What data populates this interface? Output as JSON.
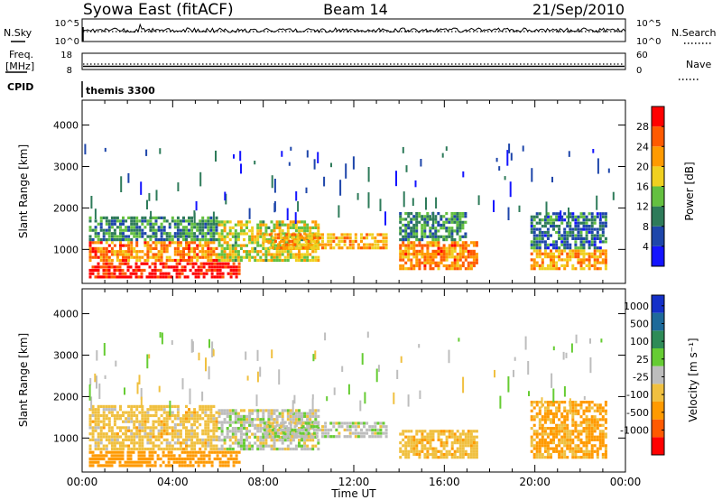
{
  "header": {
    "station": "Syowa East (fitACF)",
    "beam": "Beam 14",
    "date": "21/Sep/2010"
  },
  "nsky_panel": {
    "left_label": "N.Sky",
    "right_label": "N.Search",
    "left_ticks": [
      "10^5",
      "10^0"
    ],
    "right_ticks": [
      "10^5",
      "10^0"
    ]
  },
  "freq_panel": {
    "left_label": "Freq.",
    "left_unit": "[MHz]",
    "right_label": "Nave",
    "left_ticks": [
      "18",
      "8"
    ],
    "right_ticks": [
      "60",
      "0"
    ]
  },
  "cpid_panel": {
    "label": "CPID",
    "value": "themis 3300"
  },
  "x_axis": {
    "label": "Time UT",
    "ticks": [
      "00:00",
      "04:00",
      "08:00",
      "12:00",
      "16:00",
      "20:00",
      "00:00"
    ]
  },
  "power_panel": {
    "ylabel": "Slant Range [km]",
    "yticks": [
      "1000",
      "2000",
      "3000",
      "4000"
    ],
    "colorbar_label": "Power [dB]",
    "colorbar_ticks": [
      "4",
      "8",
      "12",
      "16",
      "20",
      "24",
      "28"
    ],
    "colors": [
      "#1414ff",
      "#1e46aa",
      "#2e7b5a",
      "#64c040",
      "#f0d020",
      "#ff9a00",
      "#ff5a00",
      "#ff0000"
    ]
  },
  "velocity_panel": {
    "ylabel": "Slant Range [km]",
    "yticks": [
      "1000",
      "2000",
      "3000",
      "4000"
    ],
    "colorbar_label": "Velocity [m s⁻¹]",
    "colorbar_ticks": [
      "1000",
      "500",
      "100",
      "25",
      "-25",
      "-100",
      "-500",
      "-1000"
    ],
    "colors": [
      "#1430c8",
      "#1e6a9a",
      "#2e8b57",
      "#66cc33",
      "#bdbdbd",
      "#f0c040",
      "#ff9a00",
      "#ff5a00",
      "#ff0000"
    ]
  },
  "chart_data": [
    {
      "type": "heatmap",
      "name": "Power",
      "x_range_hours_ut": [
        0,
        24
      ],
      "y_range_km": [
        180,
        4600
      ],
      "colorbar_range_db": [
        0,
        30
      ],
      "echo_regions": [
        {
          "t": [
            0.3,
            7.0
          ],
          "r": [
            300,
            700
          ],
          "power_db": 28
        },
        {
          "t": [
            0.3,
            6.0
          ],
          "r": [
            700,
            1200
          ],
          "power_db": 22
        },
        {
          "t": [
            0.3,
            6.0
          ],
          "r": [
            1200,
            1800
          ],
          "power_db": 10
        },
        {
          "t": [
            6.0,
            10.5
          ],
          "r": [
            700,
            1700
          ],
          "power_db": 16
        },
        {
          "t": [
            8.0,
            13.5
          ],
          "r": [
            1000,
            1400
          ],
          "power_db": 20
        },
        {
          "t": [
            14.0,
            17.5
          ],
          "r": [
            500,
            1200
          ],
          "power_db": 22
        },
        {
          "t": [
            14.0,
            17.0
          ],
          "r": [
            1200,
            1900
          ],
          "power_db": 10
        },
        {
          "t": [
            19.8,
            23.2
          ],
          "r": [
            500,
            1000
          ],
          "power_db": 20
        },
        {
          "t": [
            19.8,
            23.2
          ],
          "r": [
            1000,
            1900
          ],
          "power_db": 8
        }
      ]
    },
    {
      "type": "heatmap",
      "name": "Velocity",
      "x_range_hours_ut": [
        0,
        24
      ],
      "y_range_km": [
        180,
        4600
      ],
      "colorbar_range_ms": [
        -1000,
        1000
      ],
      "echo_regions": [
        {
          "t": [
            0.3,
            7.0
          ],
          "r": [
            300,
            700
          ],
          "velocity_ms": -150
        },
        {
          "t": [
            0.3,
            6.0
          ],
          "r": [
            700,
            1800
          ],
          "velocity_ms": -60
        },
        {
          "t": [
            6.0,
            10.5
          ],
          "r": [
            700,
            1700
          ],
          "velocity_ms": 0
        },
        {
          "t": [
            8.0,
            13.5
          ],
          "r": [
            1000,
            1400
          ],
          "velocity_ms": 5
        },
        {
          "t": [
            14.0,
            17.5
          ],
          "r": [
            500,
            1200
          ],
          "velocity_ms": -70
        },
        {
          "t": [
            19.8,
            23.2
          ],
          "r": [
            500,
            1900
          ],
          "velocity_ms": -120
        }
      ]
    }
  ]
}
